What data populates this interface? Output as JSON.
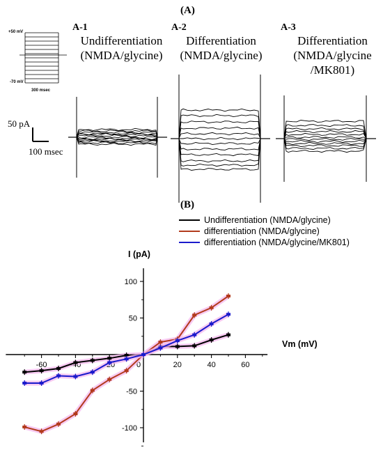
{
  "panel_a": {
    "label": "(A)",
    "protocol": {
      "top_mv": "+50 mV",
      "bottom_mv": "-70 mV",
      "duration": "300 msec"
    },
    "scale_bar": {
      "current": "50 pA",
      "time": "100 msec"
    },
    "subpanels": [
      {
        "id": "A-1",
        "line1": "Undifferentiation",
        "line2": "(NMDA/glycine)",
        "line3": ""
      },
      {
        "id": "A-2",
        "line1": "Differentiation",
        "line2": "(NMDA/glycine)",
        "line3": ""
      },
      {
        "id": "A-3",
        "line1": "Differentiation",
        "line2": "(NMDA/glycine",
        "line3": "/MK801)"
      }
    ]
  },
  "panel_b": {
    "label": "(B)"
  },
  "colors": {
    "undiff": "#000000",
    "diff": "#b23a1c",
    "mk801": "#1a1acc",
    "errorband": "#f4b3ec"
  },
  "chart_data": {
    "type": "line",
    "title": "",
    "xlabel": "Vm (mV)",
    "ylabel": "I (pA)",
    "xlim": [
      -70,
      70
    ],
    "ylim": [
      -120,
      120
    ],
    "xticks": [
      -60,
      -40,
      -20,
      0,
      20,
      40,
      60
    ],
    "yticks": [
      -100,
      -50,
      50,
      100
    ],
    "x": [
      -70,
      -60,
      -50,
      -40,
      -30,
      -20,
      -10,
      0,
      10,
      20,
      30,
      40,
      50
    ],
    "series": [
      {
        "name": "Undifferentiation (NMDA/glycine)",
        "key": "undiff",
        "values": [
          -24,
          -22,
          -19,
          -11,
          -8,
          -5,
          -1,
          0,
          11,
          11,
          12,
          20,
          27
        ]
      },
      {
        "name": "differentiation (NMDA/glycine)",
        "key": "diff",
        "values": [
          -99,
          -105,
          -95,
          -81,
          -49,
          -34,
          -22,
          0,
          17,
          21,
          54,
          64,
          80
        ]
      },
      {
        "name": "differentiation (NMDA/glycine/MK801)",
        "key": "mk801",
        "values": [
          -39,
          -39,
          -29,
          -30,
          -24,
          -11,
          -6,
          0,
          9,
          19,
          27,
          42,
          55
        ]
      }
    ],
    "legend": "top-right"
  }
}
